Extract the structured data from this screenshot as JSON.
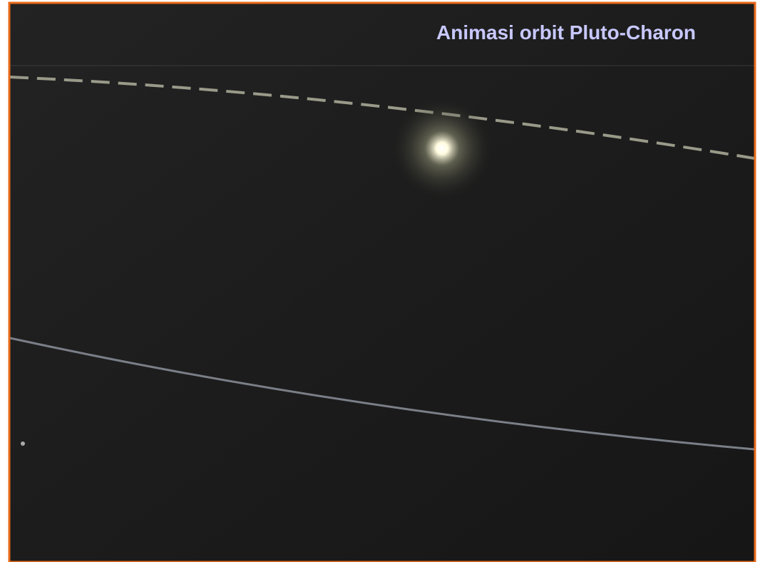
{
  "header": {
    "title": "Animasi orbit Pluto-Charon"
  }
}
